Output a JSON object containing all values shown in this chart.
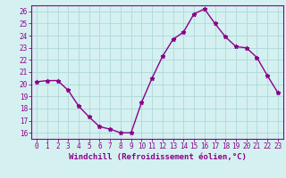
{
  "x": [
    0,
    1,
    2,
    3,
    4,
    5,
    6,
    7,
    8,
    9,
    10,
    11,
    12,
    13,
    14,
    15,
    16,
    17,
    18,
    19,
    20,
    21,
    22,
    23
  ],
  "y": [
    20.2,
    20.3,
    20.3,
    19.5,
    18.2,
    17.3,
    16.5,
    16.3,
    16.0,
    16.0,
    18.5,
    20.5,
    22.3,
    23.7,
    24.3,
    25.8,
    26.2,
    25.0,
    23.9,
    23.1,
    23.0,
    22.2,
    20.7,
    19.3
  ],
  "line_color": "#8B008B",
  "marker": "*",
  "marker_size": 3.5,
  "background_color": "#d4f0f0",
  "grid_color": "#b0d8d8",
  "xlabel": "Windchill (Refroidissement éolien,°C)",
  "ylabel": "",
  "ylim": [
    15.5,
    26.5
  ],
  "yticks": [
    16,
    17,
    18,
    19,
    20,
    21,
    22,
    23,
    24,
    25,
    26
  ],
  "xticks": [
    0,
    1,
    2,
    3,
    4,
    5,
    6,
    7,
    8,
    9,
    10,
    11,
    12,
    13,
    14,
    15,
    16,
    17,
    18,
    19,
    20,
    21,
    22,
    23
  ],
  "axis_color": "#8B008B",
  "tick_color": "#8B008B",
  "label_fontsize": 6.5,
  "tick_fontsize": 5.5,
  "line_width": 1.0
}
